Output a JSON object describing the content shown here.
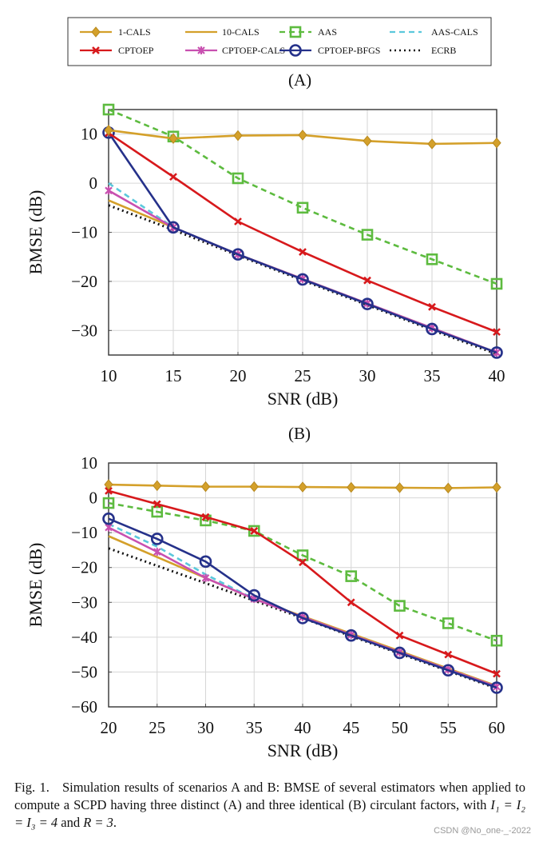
{
  "legend": [
    {
      "name": "1-CALS",
      "color": "#D4A02A",
      "dash": "",
      "marker": "diamond"
    },
    {
      "name": "10-CALS",
      "color": "#D4A02A",
      "dash": "",
      "marker": "none"
    },
    {
      "name": "AAS",
      "color": "#5DBB3F",
      "dash": "7,5",
      "marker": "square"
    },
    {
      "name": "AAS-CALS",
      "color": "#5BC8DC",
      "dash": "7,5",
      "marker": "none"
    },
    {
      "name": "CPTOEP",
      "color": "#D7191C",
      "dash": "",
      "marker": "x"
    },
    {
      "name": "CPTOEP-CALS",
      "color": "#C850B0",
      "dash": "",
      "marker": "star"
    },
    {
      "name": "CPTOEP-BFGS",
      "color": "#25318A",
      "dash": "",
      "marker": "circle"
    },
    {
      "name": "ECRB",
      "color": "#111111",
      "dash": "2,4",
      "marker": "none"
    }
  ],
  "chart_data": [
    {
      "panel_label": "(A)",
      "type": "line",
      "xlabel": "SNR (dB)",
      "ylabel": "BMSE (dB)",
      "x": [
        10,
        15,
        20,
        25,
        30,
        35,
        40
      ],
      "xlim": [
        10,
        40
      ],
      "ylim": [
        -35,
        15
      ],
      "xticks": [
        10,
        15,
        20,
        25,
        30,
        35,
        40
      ],
      "yticks": [
        -30,
        -20,
        -10,
        0,
        10
      ],
      "grid": true,
      "legend_position": "top (shared, above panels)",
      "series": [
        {
          "name": "10-CALS",
          "values": [
            -3.5,
            -9,
            -14.5,
            -19.5,
            -24.5,
            -29.5,
            -34.5
          ]
        },
        {
          "name": "ECRB",
          "values": [
            -4.5,
            -9.5,
            -14.7,
            -19.8,
            -24.8,
            -29.9,
            -34.8
          ]
        },
        {
          "name": "AAS-CALS",
          "values": [
            0,
            -9,
            -14.5,
            -19.5,
            -24.5,
            -29.5,
            -34.5
          ]
        },
        {
          "name": "CPTOEP-CALS",
          "values": [
            -1.5,
            -9,
            -14.5,
            -19.5,
            -24.5,
            -29.5,
            -34.5
          ]
        },
        {
          "name": "CPTOEP-BFGS",
          "values": [
            10.3,
            -9,
            -14.5,
            -19.6,
            -24.6,
            -29.7,
            -34.5
          ]
        },
        {
          "name": "CPTOEP",
          "values": [
            10.2,
            1.3,
            -7.8,
            -14,
            -19.8,
            -25.2,
            -30.3
          ]
        },
        {
          "name": "AAS",
          "values": [
            15,
            9.5,
            1,
            -5,
            -10.5,
            -15.5,
            -20.5
          ]
        },
        {
          "name": "1-CALS",
          "values": [
            10.8,
            9.1,
            9.7,
            9.8,
            8.6,
            8.0,
            8.2
          ]
        }
      ]
    },
    {
      "panel_label": "(B)",
      "type": "line",
      "xlabel": "SNR (dB)",
      "ylabel": "BMSE (dB)",
      "x": [
        20,
        25,
        30,
        35,
        40,
        45,
        50,
        55,
        60
      ],
      "xlim": [
        20,
        60
      ],
      "ylim": [
        -60,
        10
      ],
      "xticks": [
        20,
        25,
        30,
        35,
        40,
        45,
        50,
        55,
        60
      ],
      "yticks": [
        -60,
        -50,
        -40,
        -30,
        -20,
        -10,
        0,
        10
      ],
      "grid": true,
      "series": [
        {
          "name": "10-CALS",
          "values": [
            -11,
            -17,
            -23,
            -29,
            -34,
            -39,
            -44,
            -49,
            -54
          ]
        },
        {
          "name": "ECRB",
          "values": [
            -14.5,
            -19.5,
            -24.5,
            -29.5,
            -34.5,
            -39.7,
            -44.7,
            -49.7,
            -54.7
          ]
        },
        {
          "name": "AAS-CALS",
          "values": [
            -7.5,
            -14,
            -22,
            -29,
            -34.2,
            -39.3,
            -44.3,
            -49.3,
            -54.2
          ]
        },
        {
          "name": "CPTOEP-CALS",
          "values": [
            -8.5,
            -15.5,
            -23,
            -29,
            -34.2,
            -39.3,
            -44.3,
            -49.3,
            -54.2
          ]
        },
        {
          "name": "CPTOEP-BFGS",
          "values": [
            -6,
            -11.8,
            -18.3,
            -28,
            -34.5,
            -39.5,
            -44.5,
            -49.5,
            -54.5
          ]
        },
        {
          "name": "AAS",
          "values": [
            -1.5,
            -4,
            -6.5,
            -9.5,
            -16.5,
            -22.5,
            -31,
            -36,
            -41
          ]
        },
        {
          "name": "CPTOEP",
          "values": [
            2,
            -1.8,
            -5.5,
            -9.5,
            -18.5,
            -30,
            -39.5,
            -45,
            -50.5
          ]
        },
        {
          "name": "1-CALS",
          "values": [
            3.8,
            3.5,
            3.2,
            3.2,
            3.1,
            3.0,
            2.9,
            2.8,
            3.0
          ]
        }
      ]
    }
  ],
  "caption": {
    "prefix": "Fig. 1.",
    "text": "Simulation results of scenarios A and B: BMSE of several estimators when applied to compute a SCPD having three distinct (A) and three identical (B) circulant factors, with ",
    "math": "I₁ = I₂ = I₃ = 4",
    "and": " and ",
    "math2": "R = 3",
    "end": "."
  },
  "watermark": "CSDN @No_one-_-2022"
}
